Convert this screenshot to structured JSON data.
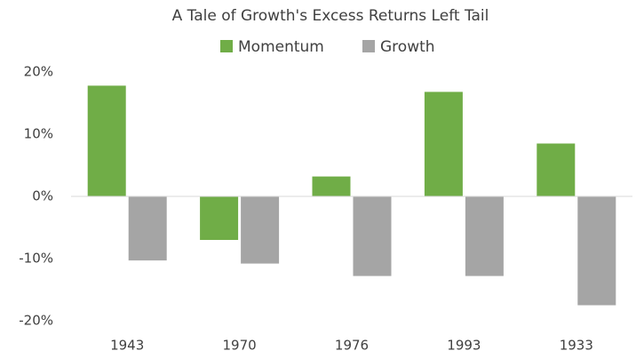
{
  "chart_data": {
    "type": "bar",
    "title": "A Tale of Growth's Excess Returns Left Tail",
    "categories": [
      "1943",
      "1970",
      "1976",
      "1993",
      "1933"
    ],
    "series": [
      {
        "name": "Momentum",
        "color": "#70ad47",
        "values": [
          17.8,
          -7,
          3.2,
          16.8,
          8.5
        ]
      },
      {
        "name": "Growth",
        "color": "#a5a5a5",
        "values": [
          -10.3,
          -10.8,
          -12.8,
          -12.8,
          -17.5
        ]
      }
    ],
    "ylim": [
      -20,
      20
    ],
    "yticks": [
      {
        "value": 20,
        "label": "20%"
      },
      {
        "value": 10,
        "label": "10%"
      },
      {
        "value": 0,
        "label": "0%"
      },
      {
        "value": -10,
        "label": "-10%"
      },
      {
        "value": -20,
        "label": "-20%"
      }
    ],
    "legend": "top",
    "grid": false
  }
}
